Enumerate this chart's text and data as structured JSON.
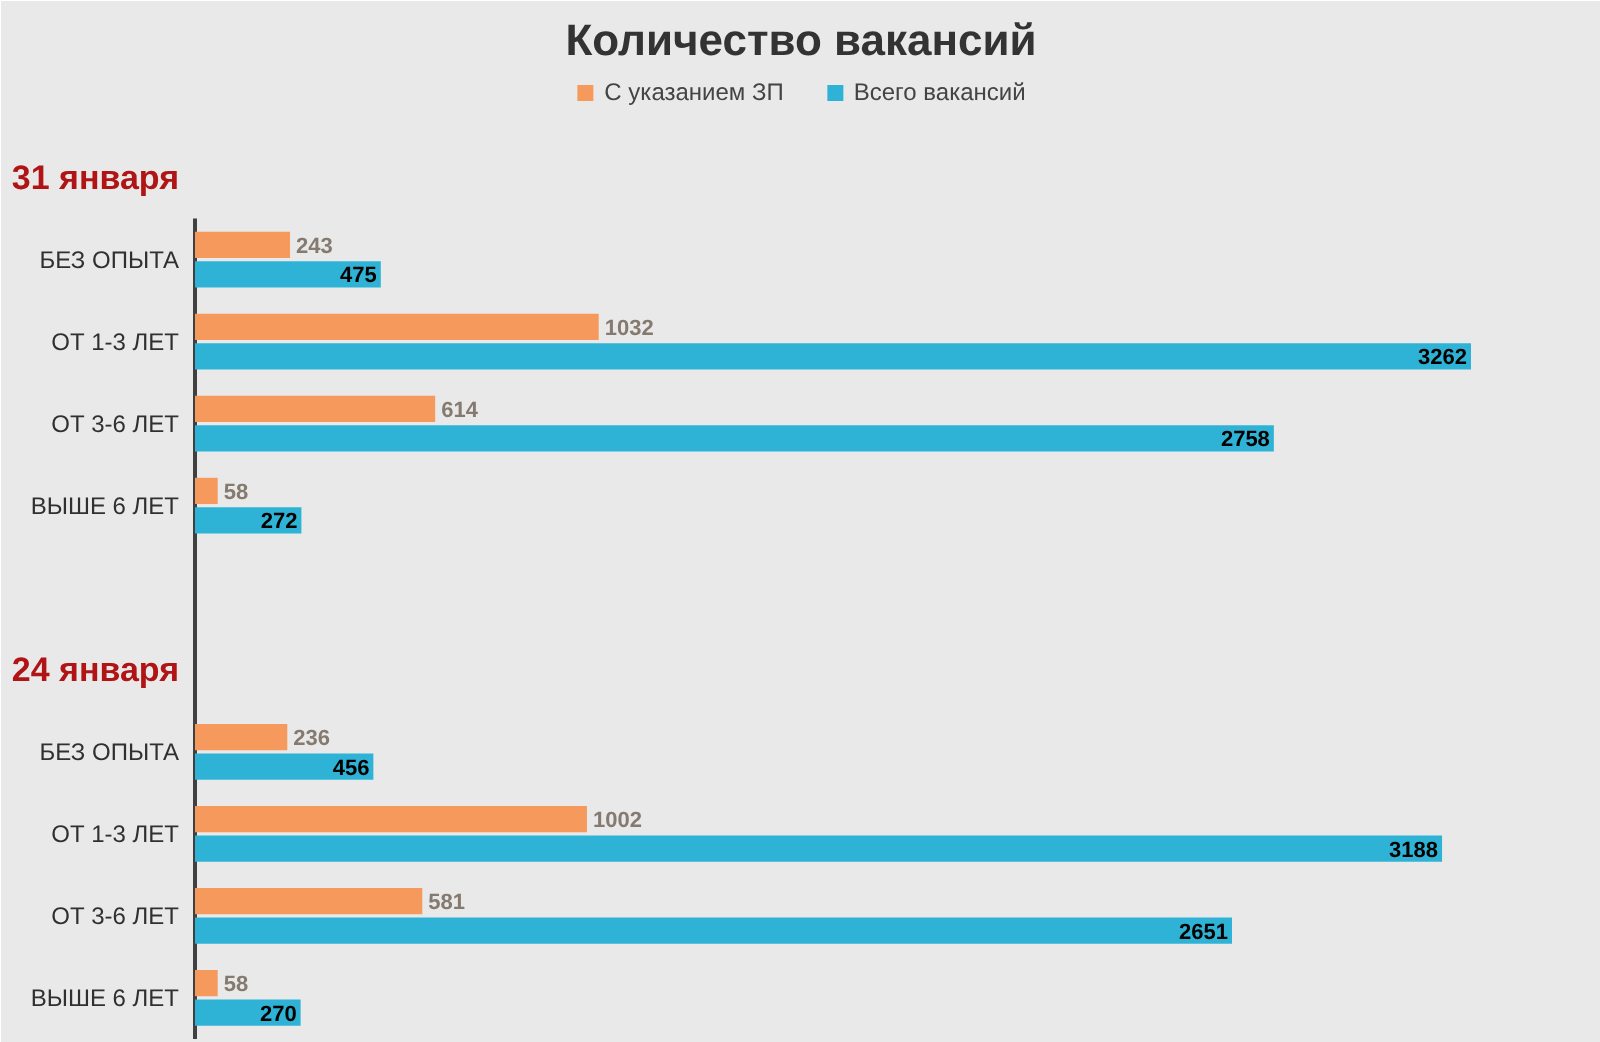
{
  "chart_data": {
    "type": "bar",
    "orientation": "horizontal",
    "title": "Количество вакансий",
    "categories": [
      "31 января",
      "БЕЗ ОПЫТА",
      "ОТ 1-3 ЛЕТ",
      "ОТ 3-6 ЛЕТ",
      "ВЫШЕ 6 ЛЕТ",
      null,
      "24 января",
      "БЕЗ ОПЫТА",
      "ОТ 1-3 ЛЕТ",
      "ОТ 3-6 ЛЕТ",
      "ВЫШЕ 6 ЛЕТ"
    ],
    "series": [
      {
        "name": "С указанием ЗП",
        "color": "#f59a5c",
        "values": [
          null,
          243,
          1032,
          614,
          58,
          null,
          null,
          236,
          1002,
          581,
          58
        ]
      },
      {
        "name": "Всего вакансий",
        "color": "#2eb3d6",
        "values": [
          null,
          475,
          3262,
          2758,
          272,
          null,
          null,
          456,
          3188,
          2651,
          270
        ]
      }
    ],
    "data_labels": true,
    "legend": "top"
  }
}
